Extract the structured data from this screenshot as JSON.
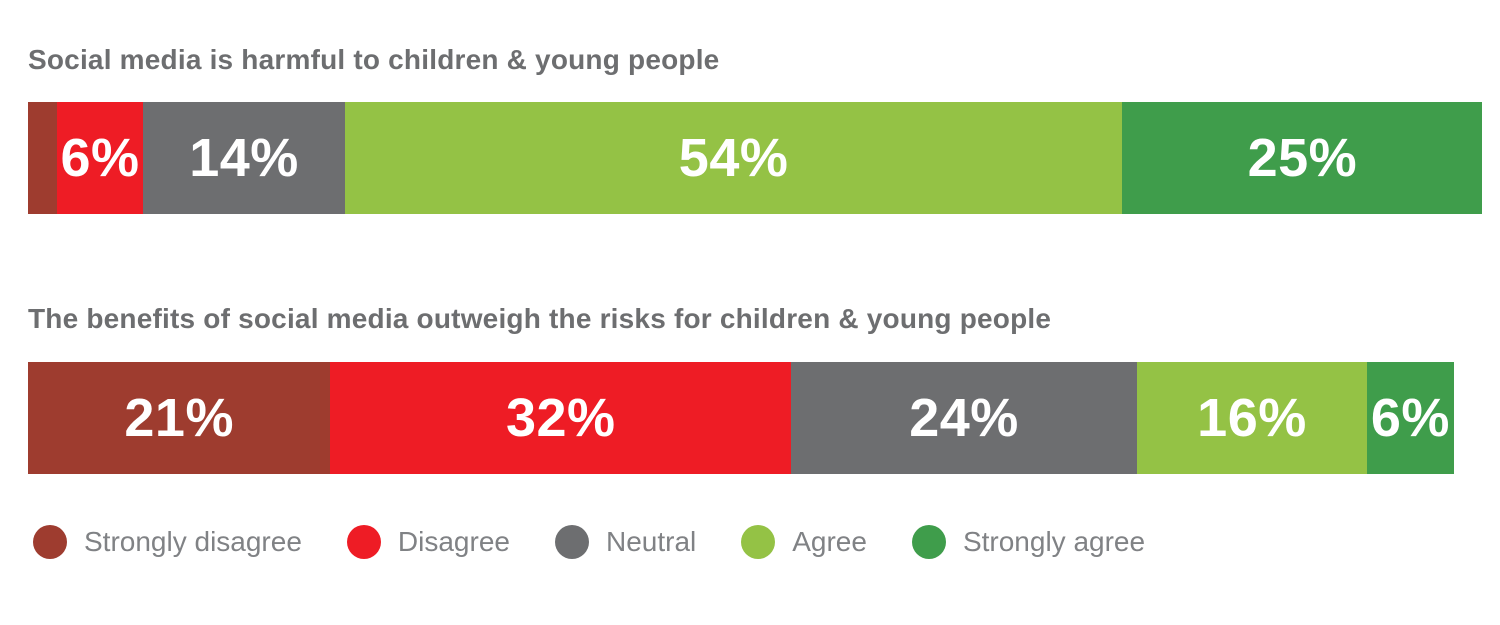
{
  "chart_data": {
    "type": "bar",
    "subtype": "horizontal-stacked-percentage",
    "xlim": [
      0,
      100
    ],
    "grid": false,
    "legend_position": "bottom",
    "categories": [
      "Strongly disagree",
      "Disagree",
      "Neutral",
      "Agree",
      "Strongly agree"
    ],
    "series_colors": [
      "#9e3c2f",
      "#ee1c25",
      "#6d6e70",
      "#94c245",
      "#3f9d4b"
    ],
    "bars": [
      {
        "title": "Social media is harmful to children & young people",
        "values": [
          2,
          6,
          14,
          54,
          25
        ],
        "labels": [
          "",
          "6%",
          "14%",
          "54%",
          "25%"
        ]
      },
      {
        "title": "The benefits of social media outweigh the risks for children & young people",
        "values": [
          21,
          32,
          24,
          16,
          6
        ],
        "labels": [
          "21%",
          "32%",
          "24%",
          "16%",
          "6%"
        ]
      }
    ]
  },
  "colors": {
    "background": "#ffffff",
    "title_text": "#6d6e70",
    "legend_text": "#808285",
    "bar_label_text": "#ffffff"
  }
}
